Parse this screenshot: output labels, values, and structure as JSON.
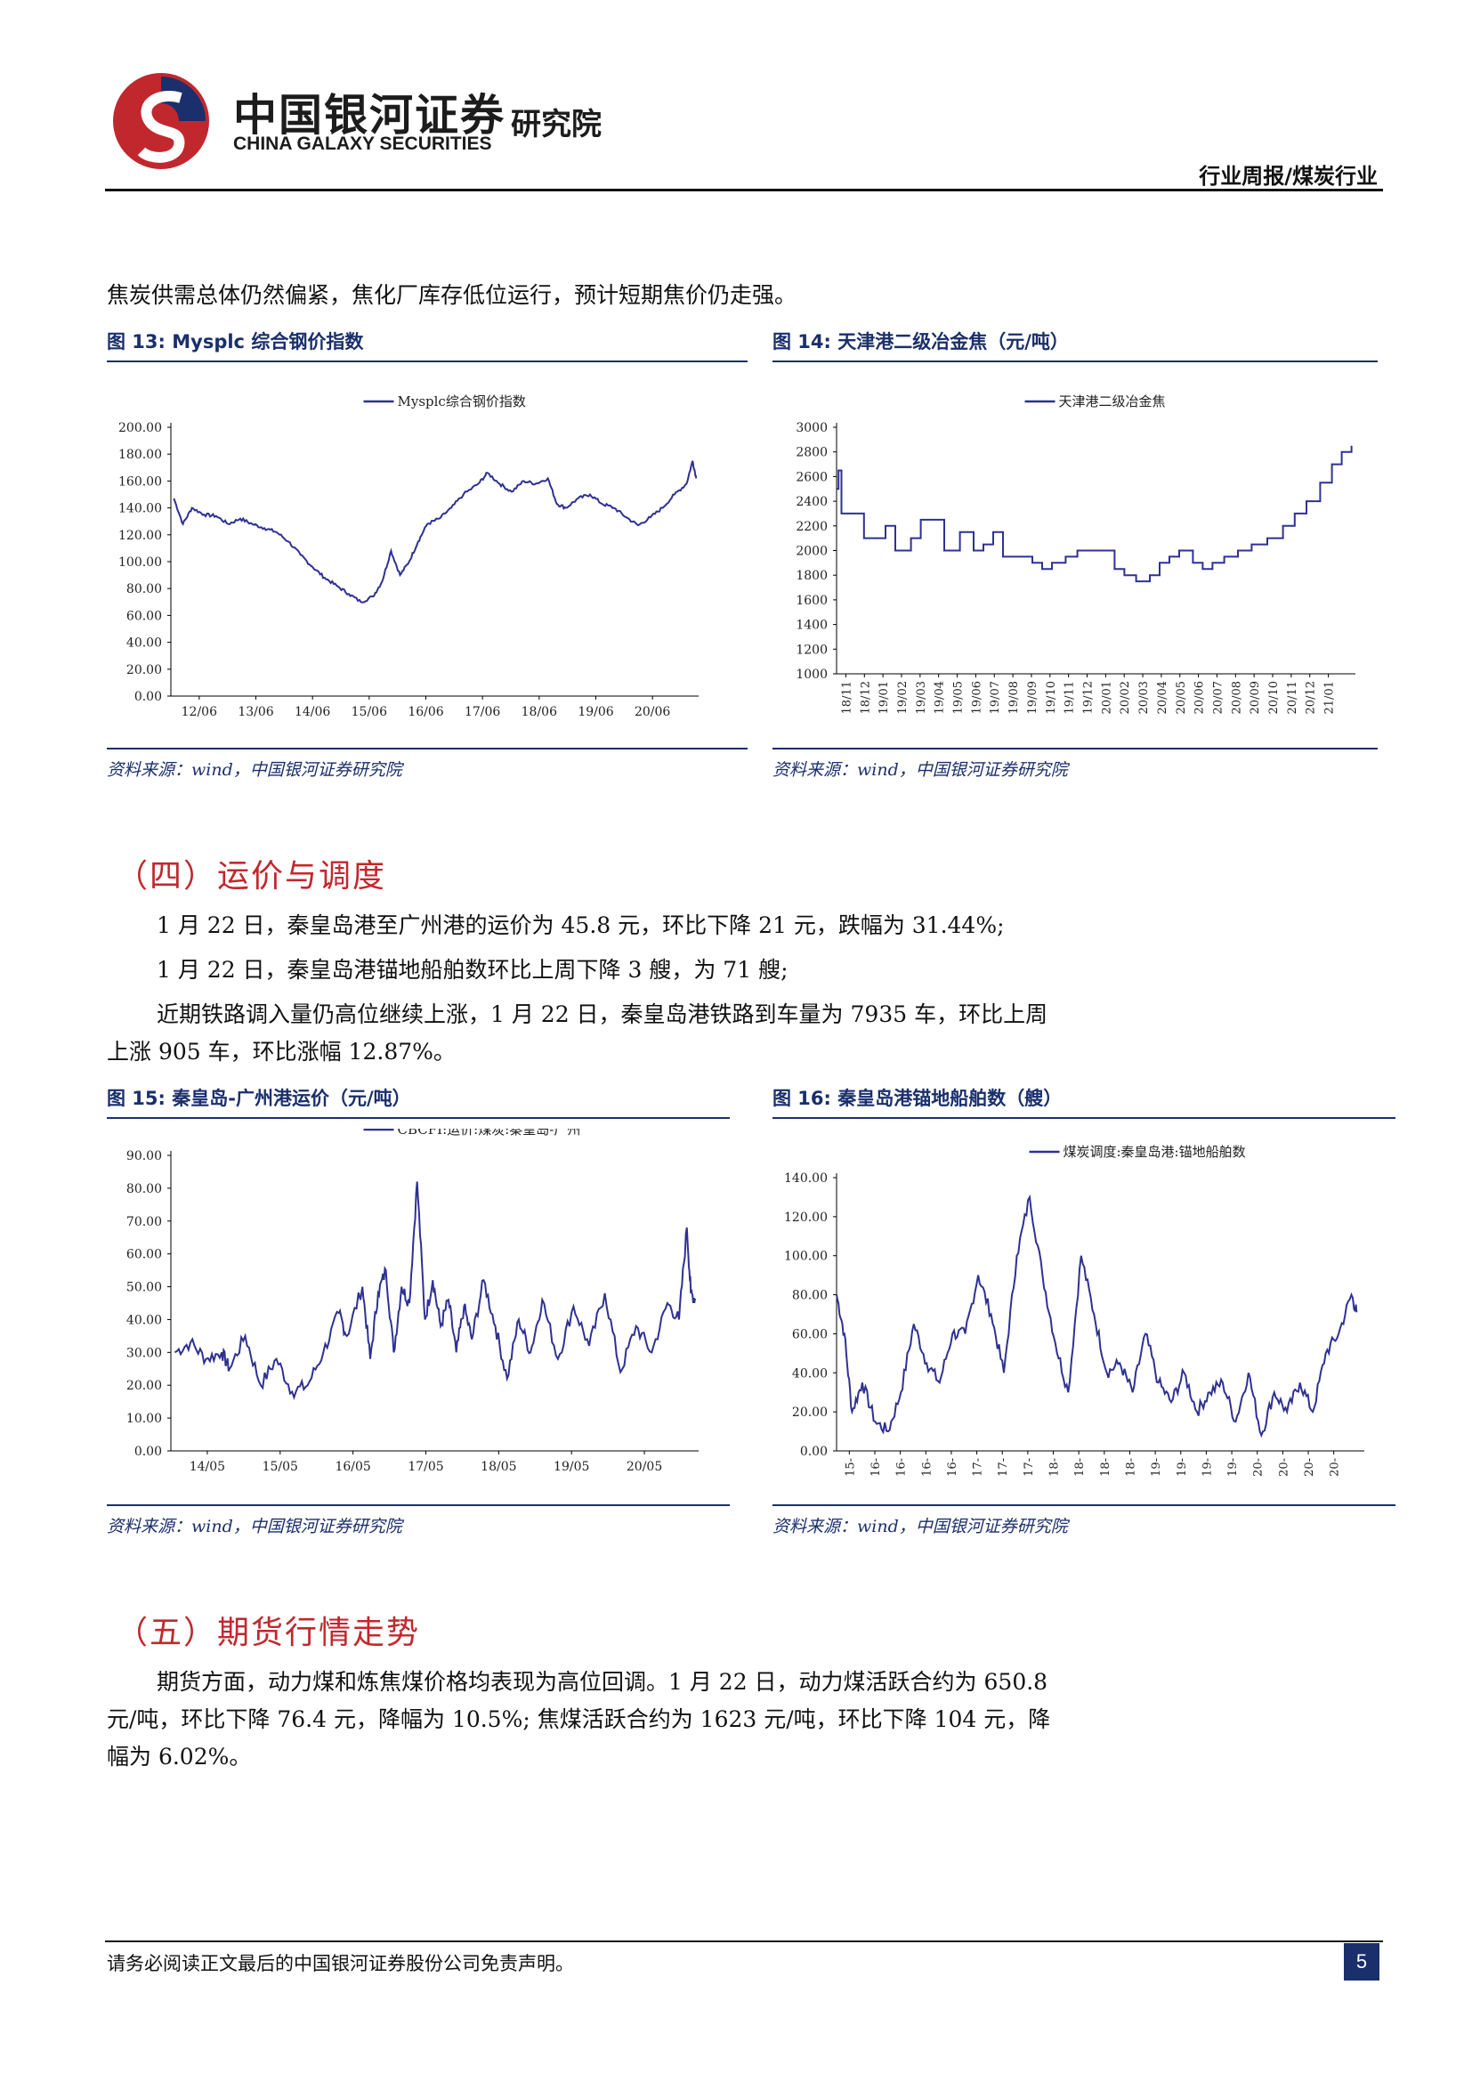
{
  "header": {
    "brand_cn": "中国银河证券",
    "brand_en": "CHINA GALAXY SECURITIES",
    "institute": "研究院",
    "doc_type": "行业周报/煤炭行业"
  },
  "intro_text": "焦炭供需总体仍然偏紧，焦化厂库存低位运行，预计短期焦价仍走强。",
  "fig13": {
    "title": "图 13:  Mysplc  综合钢价指数",
    "source": "资料来源：wind，中国银河证券研究院"
  },
  "fig14": {
    "title": "图 14:  天津港二级冶金焦（元/吨）",
    "source": "资料来源：wind，中国银河证券研究院"
  },
  "section4": {
    "heading": "（四）运价与调度",
    "p1": "1 月 22 日，秦皇岛港至广州港的运价为 45.8 元，环比下降 21 元，跌幅为 31.44%;",
    "p2": "1 月 22 日，秦皇岛港锚地船舶数环比上周下降 3 艘，为 71 艘;",
    "p3_line1": "近期铁路调入量仍高位继续上涨，1 月 22 日，秦皇岛港铁路到车量为 7935 车，环比上周",
    "p3_line2": "上涨 905 车，环比涨幅 12.87%。"
  },
  "fig15": {
    "title": "图 15:  秦皇岛-广州港运价（元/吨）",
    "source": "资料来源：wind，中国银河证券研究院"
  },
  "fig16": {
    "title": "图 16:  秦皇岛港锚地船舶数（艘）",
    "source": "资料来源：wind，中国银河证券研究院"
  },
  "section5": {
    "heading": "（五）期货行情走势",
    "p1_line1": "期货方面，动力煤和炼焦煤价格均表现为高位回调。1 月 22 日，动力煤活跃合约为 650.8",
    "p1_line2": "元/吨，环比下降 76.4 元，降幅为 10.5%; 焦煤活跃合约为 1623 元/吨，环比下降 104 元，降",
    "p1_line3": "幅为 6.02%。"
  },
  "footer": {
    "disclaimer": "请务必阅读正文最后的中国银河证券股份公司免责声明。",
    "page": "5"
  },
  "colors": {
    "line": "#2e3192",
    "accent": "#c0282d",
    "navy": "#1a2f6b"
  },
  "chart_data": [
    {
      "id": "fig13",
      "type": "line",
      "legend": "Mysplc综合钢价指数",
      "x_ticks": [
        "12/06",
        "13/06",
        "14/06",
        "15/06",
        "16/06",
        "17/06",
        "18/06",
        "19/06",
        "20/06"
      ],
      "y_ticks": [
        "0.00",
        "20.00",
        "40.00",
        "60.00",
        "80.00",
        "100.00",
        "120.00",
        "140.00",
        "160.00",
        "180.00",
        "200.00"
      ],
      "ylim": [
        0,
        200
      ],
      "xlim": [
        2012.35,
        2021.1
      ],
      "x": [
        2012.4,
        2012.55,
        2012.7,
        2012.9,
        2013.1,
        2013.3,
        2013.5,
        2013.7,
        2013.9,
        2014.1,
        2014.3,
        2014.5,
        2014.7,
        2014.9,
        2015.1,
        2015.3,
        2015.5,
        2015.7,
        2015.85,
        2016.0,
        2016.15,
        2016.3,
        2016.45,
        2016.6,
        2016.8,
        2017.0,
        2017.2,
        2017.45,
        2017.6,
        2017.8,
        2018.0,
        2018.2,
        2018.4,
        2018.6,
        2018.75,
        2018.9,
        2019.1,
        2019.3,
        2019.5,
        2019.7,
        2019.9,
        2020.1,
        2020.3,
        2020.5,
        2020.7,
        2020.9,
        2021.0,
        2021.06
      ],
      "y": [
        147,
        128,
        140,
        135,
        134,
        128,
        132,
        128,
        125,
        122,
        115,
        105,
        96,
        88,
        82,
        76,
        70,
        74,
        85,
        108,
        90,
        100,
        115,
        128,
        132,
        140,
        150,
        158,
        166,
        158,
        152,
        160,
        158,
        162,
        143,
        140,
        147,
        150,
        143,
        140,
        133,
        127,
        133,
        140,
        150,
        158,
        175,
        162
      ]
    },
    {
      "id": "fig14",
      "type": "line",
      "legend": "天津港二级冶金焦",
      "x_ticks": [
        "18/11",
        "18/12",
        "19/01",
        "19/02",
        "19/03",
        "19/04",
        "19/05",
        "19/06",
        "19/07",
        "19/08",
        "19/09",
        "19/10",
        "19/11",
        "19/12",
        "20/01",
        "20/02",
        "20/03",
        "20/04",
        "20/05",
        "20/06",
        "20/07",
        "20/08",
        "20/09",
        "20/10",
        "20/11",
        "20/12",
        "21/01"
      ],
      "y_ticks": [
        "1000",
        "1200",
        "1400",
        "1600",
        "1800",
        "2000",
        "2200",
        "2400",
        "2600",
        "2800",
        "3000"
      ],
      "ylim": [
        1000,
        3000
      ],
      "xlim": [
        0,
        26.5
      ],
      "x": [
        0,
        0.1,
        0.25,
        1.0,
        1.4,
        2.5,
        3.0,
        3.8,
        4.3,
        5.5,
        6.3,
        7.0,
        7.5,
        8.0,
        8.5,
        9.2,
        10.0,
        10.5,
        11.0,
        11.7,
        12.3,
        13.2,
        14.2,
        14.7,
        15.3,
        16.0,
        16.5,
        17.0,
        17.5,
        18.2,
        18.7,
        19.2,
        19.8,
        20.5,
        21.2,
        22.0,
        22.8,
        23.4,
        24.0,
        24.7,
        25.3,
        25.8,
        26.3
      ],
      "y": [
        2500,
        2650,
        2300,
        2300,
        2100,
        2200,
        2000,
        2100,
        2250,
        2000,
        2150,
        2000,
        2050,
        2150,
        1950,
        1950,
        1900,
        1850,
        1900,
        1950,
        2000,
        2000,
        1850,
        1800,
        1750,
        1800,
        1900,
        1950,
        2000,
        1900,
        1850,
        1900,
        1950,
        2000,
        2050,
        2100,
        2200,
        2300,
        2400,
        2550,
        2700,
        2800,
        2850
      ]
    },
    {
      "id": "fig15",
      "type": "line",
      "legend": "CBCFI:运价:煤炭:秦皇岛-广州",
      "x_ticks": [
        "14/05",
        "15/05",
        "16/05",
        "17/05",
        "18/05",
        "19/05",
        "20/05"
      ],
      "y_ticks": [
        "0.00",
        "10.00",
        "20.00",
        "30.00",
        "40.00",
        "50.00",
        "60.00",
        "70.00",
        "80.00",
        "90.00"
      ],
      "ylim": [
        0,
        90
      ],
      "xlim": [
        2014.35,
        2021.1
      ],
      "x": [
        2014.4,
        2014.6,
        2014.8,
        2015.0,
        2015.1,
        2015.3,
        2015.5,
        2015.7,
        2015.9,
        2016.1,
        2016.3,
        2016.5,
        2016.6,
        2016.8,
        2016.9,
        2017.0,
        2017.1,
        2017.2,
        2017.3,
        2017.4,
        2017.5,
        2017.6,
        2017.7,
        2017.8,
        2017.9,
        2018.0,
        2018.1,
        2018.2,
        2018.35,
        2018.5,
        2018.65,
        2018.8,
        2018.95,
        2019.1,
        2019.3,
        2019.5,
        2019.7,
        2019.9,
        2020.1,
        2020.3,
        2020.5,
        2020.7,
        2020.85,
        2020.95,
        2021.0,
        2021.06
      ],
      "y": [
        30,
        33,
        28,
        30,
        25,
        35,
        20,
        28,
        18,
        20,
        30,
        42,
        35,
        50,
        28,
        48,
        55,
        30,
        50,
        45,
        82,
        40,
        52,
        38,
        46,
        30,
        44,
        34,
        52,
        38,
        22,
        40,
        30,
        46,
        28,
        44,
        32,
        48,
        24,
        38,
        30,
        45,
        40,
        68,
        48,
        46
      ]
    },
    {
      "id": "fig16",
      "type": "line",
      "legend": "煤炭调度:秦皇岛港:锚地船舶数",
      "x_ticks": [
        "15-",
        "16-",
        "16-",
        "16-",
        "16-",
        "17-",
        "17-",
        "17-",
        "18-",
        "18-",
        "18-",
        "18-",
        "19-",
        "19-",
        "19-",
        "19-",
        "20-",
        "20-",
        "20-",
        "20-"
      ],
      "y_ticks": [
        "0.00",
        "20.00",
        "40.00",
        "60.00",
        "80.00",
        "100.00",
        "120.00",
        "140.00"
      ],
      "ylim": [
        0,
        140
      ],
      "xlim": [
        0,
        20.5
      ],
      "x": [
        0,
        0.3,
        0.6,
        1.0,
        1.5,
        2.0,
        2.5,
        3.0,
        3.5,
        4.0,
        4.5,
        5.0,
        5.5,
        6.0,
        6.5,
        7.0,
        7.5,
        8.0,
        8.5,
        9.0,
        9.5,
        10.0,
        10.5,
        11.0,
        11.5,
        12.0,
        12.5,
        13.0,
        13.5,
        14.0,
        14.5,
        15.0,
        15.5,
        16.0,
        16.5,
        17.0,
        17.5,
        18.0,
        18.5,
        19.0,
        19.5,
        20.0,
        20.2
      ],
      "y": [
        80,
        60,
        20,
        35,
        15,
        10,
        30,
        65,
        45,
        35,
        60,
        60,
        90,
        70,
        40,
        100,
        130,
        90,
        55,
        30,
        100,
        70,
        40,
        45,
        30,
        60,
        35,
        25,
        40,
        20,
        30,
        35,
        15,
        40,
        8,
        30,
        20,
        35,
        20,
        50,
        60,
        80,
        71
      ]
    }
  ]
}
